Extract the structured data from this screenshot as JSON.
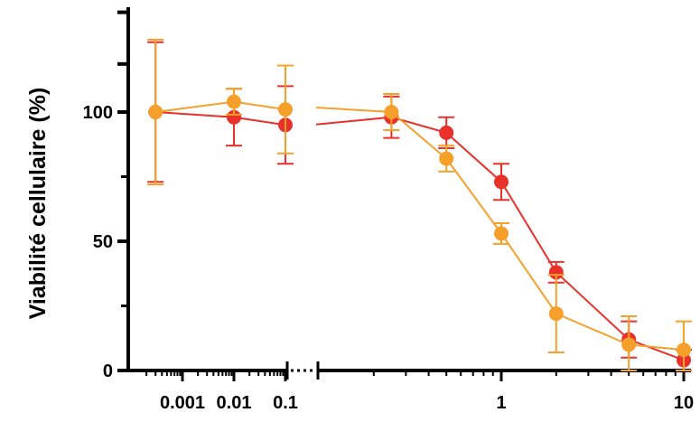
{
  "chart_data": {
    "type": "line",
    "title": "",
    "xlabel": "",
    "ylabel": "Viabilité cellulaire (%)",
    "x_scale": "log",
    "x_axis_break": true,
    "ylim": [
      0,
      140
    ],
    "y_ticks": [
      0,
      50,
      100
    ],
    "y_tick_labels": [
      "0",
      "50",
      "100"
    ],
    "x_ticks_left": [
      0.001,
      0.01,
      0.1
    ],
    "x_tick_labels_left": [
      "0.001",
      "0.01",
      "0.1"
    ],
    "x_ticks_right": [
      1,
      10
    ],
    "x_tick_labels_right": [
      "1",
      "10"
    ],
    "grid": false,
    "legend": "none",
    "series": [
      {
        "color": "#e8312a",
        "points": [
          {
            "x": 0.0003,
            "y": 100,
            "err": 27
          },
          {
            "x": 0.01,
            "y": 98,
            "err": 11
          },
          {
            "x": 0.1,
            "y": 95,
            "err": 15
          },
          {
            "x": 0.25,
            "y": 98,
            "err": 8
          },
          {
            "x": 0.5,
            "y": 92,
            "err": 6
          },
          {
            "x": 1.0,
            "y": 73,
            "err": 7
          },
          {
            "x": 2.0,
            "y": 38,
            "err": 4
          },
          {
            "x": 5.0,
            "y": 12,
            "err": 7
          },
          {
            "x": 10.0,
            "y": 4,
            "err": 4
          }
        ]
      },
      {
        "color": "#f5a02a",
        "points": [
          {
            "x": 0.0003,
            "y": 100,
            "err": 28
          },
          {
            "x": 0.01,
            "y": 104,
            "err": 5
          },
          {
            "x": 0.1,
            "y": 101,
            "err": 17
          },
          {
            "x": 0.25,
            "y": 100,
            "err": 7
          },
          {
            "x": 0.5,
            "y": 82,
            "err": 5
          },
          {
            "x": 1.0,
            "y": 53,
            "err": 4
          },
          {
            "x": 2.0,
            "y": 22,
            "err": 15
          },
          {
            "x": 5.0,
            "y": 10,
            "err": 11
          },
          {
            "x": 10.0,
            "y": 8,
            "err": 11
          }
        ]
      }
    ]
  }
}
